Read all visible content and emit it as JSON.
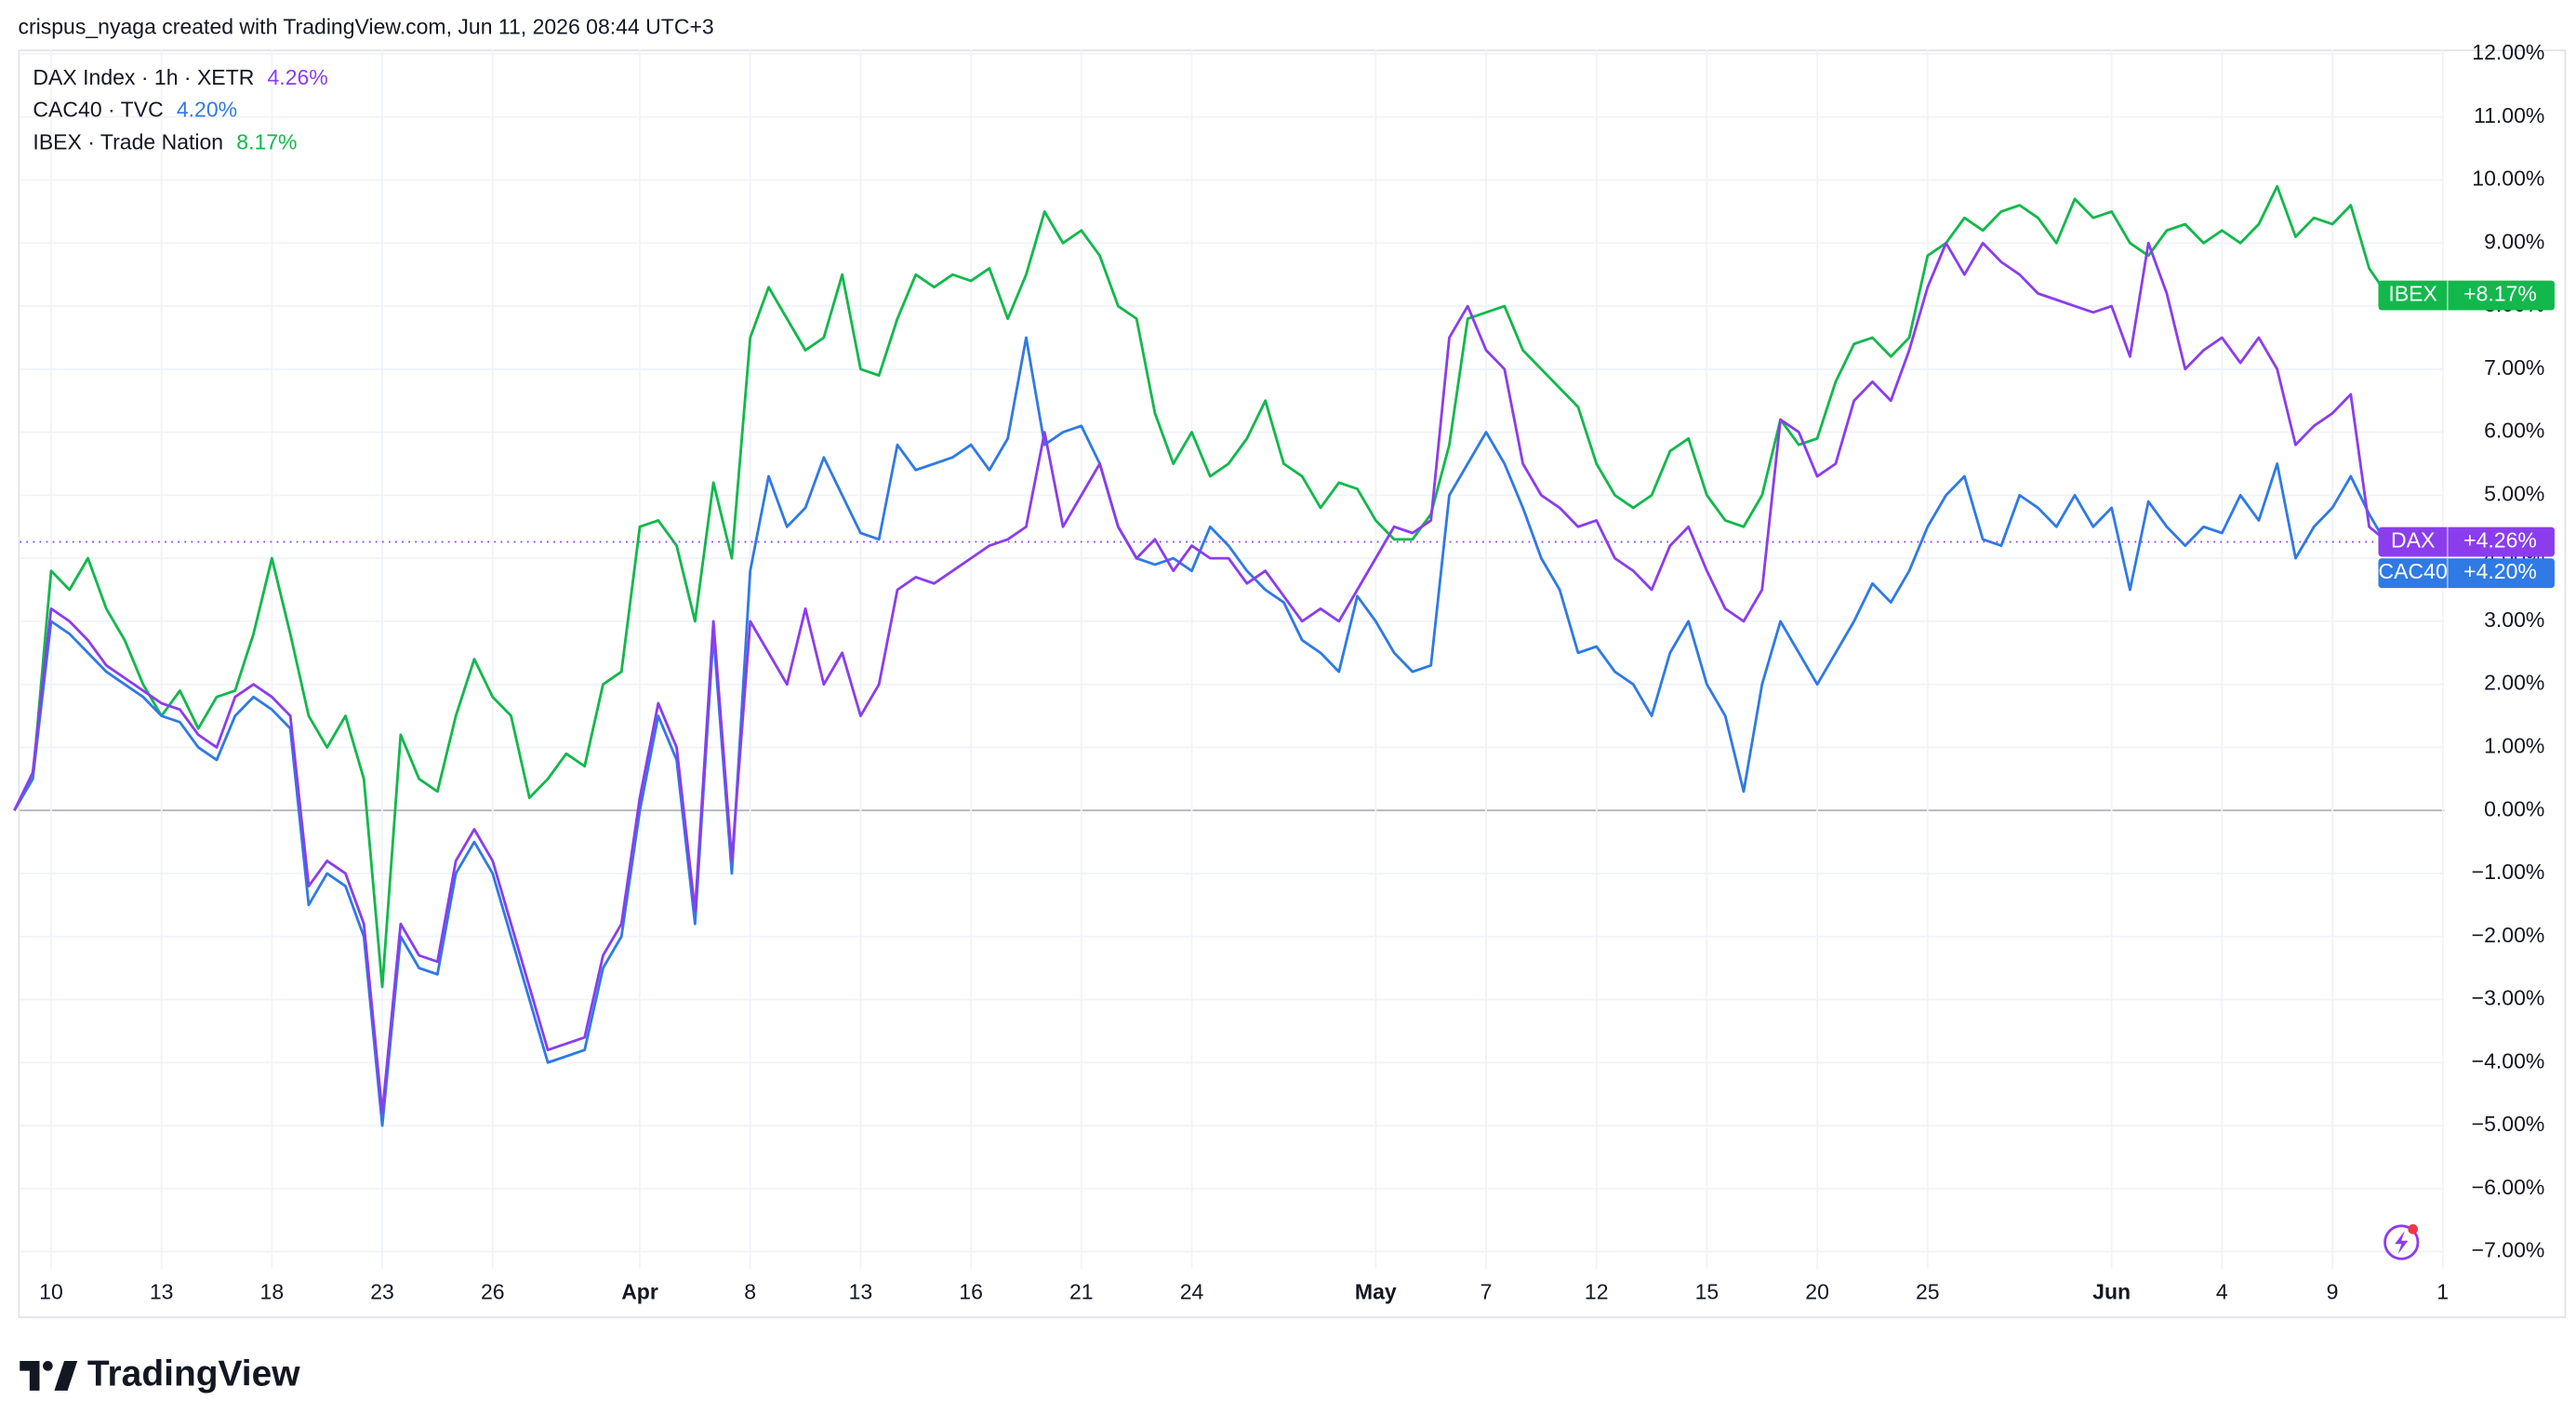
{
  "header": {
    "text": "crispus_nyaga created with TradingView.com, Jun 11, 2026 08:44 UTC+3"
  },
  "chart_data": {
    "type": "line",
    "categories": [
      null,
      null,
      "10",
      null,
      null,
      null,
      null,
      null,
      "13",
      null,
      null,
      null,
      null,
      null,
      "18",
      null,
      null,
      null,
      null,
      null,
      "23",
      null,
      null,
      null,
      null,
      null,
      "26",
      null,
      null,
      null,
      null,
      null,
      null,
      null,
      "Apr",
      null,
      null,
      null,
      null,
      null,
      "8",
      null,
      null,
      null,
      null,
      null,
      "13",
      null,
      null,
      null,
      null,
      null,
      "16",
      null,
      null,
      null,
      null,
      null,
      "21",
      null,
      null,
      null,
      null,
      null,
      "24",
      null,
      null,
      null,
      null,
      null,
      null,
      null,
      null,
      null,
      "May",
      null,
      null,
      null,
      null,
      null,
      "7",
      null,
      null,
      null,
      null,
      null,
      "12",
      null,
      null,
      null,
      null,
      null,
      "15",
      null,
      null,
      null,
      null,
      null,
      "20",
      null,
      null,
      null,
      null,
      null,
      "25",
      null,
      null,
      null,
      null,
      null,
      null,
      null,
      null,
      null,
      "Jun",
      null,
      null,
      null,
      null,
      null,
      "4",
      null,
      null,
      null,
      null,
      null,
      "9",
      null,
      null,
      null,
      null,
      null,
      "1"
    ],
    "series": [
      {
        "name": "DAX Index · 1h · XETR",
        "last_label": "4.26%",
        "tag": "DAX",
        "tag_value": "+4.26%",
        "color": "#8b3ded",
        "values": [
          0,
          0.6,
          3.2,
          3.0,
          2.7,
          2.3,
          2.1,
          1.9,
          1.7,
          1.6,
          1.2,
          1.0,
          1.8,
          2.0,
          1.8,
          1.5,
          -1.2,
          -0.8,
          -1.0,
          -1.8,
          -4.8,
          -1.8,
          -2.3,
          -2.4,
          -0.8,
          -0.3,
          -0.8,
          -1.8,
          -2.8,
          -3.8,
          -3.7,
          -3.6,
          -2.3,
          -1.8,
          0.2,
          1.7,
          1.0,
          -1.6,
          3.0,
          -0.8,
          3.0,
          2.5,
          2.0,
          3.2,
          2.0,
          2.5,
          1.5,
          2.0,
          3.5,
          3.7,
          3.6,
          3.8,
          4.0,
          4.2,
          4.3,
          4.5,
          6.0,
          4.5,
          5.0,
          5.5,
          4.5,
          4.0,
          4.3,
          3.8,
          4.2,
          4.0,
          4.0,
          3.6,
          3.8,
          3.4,
          3.0,
          3.2,
          3.0,
          3.5,
          4.0,
          4.5,
          4.4,
          4.6,
          7.5,
          8.0,
          7.3,
          7.0,
          5.5,
          5.0,
          4.8,
          4.5,
          4.6,
          4.0,
          3.8,
          3.5,
          4.2,
          4.5,
          3.8,
          3.2,
          3.0,
          3.5,
          6.2,
          6.0,
          5.3,
          5.5,
          6.5,
          6.8,
          6.5,
          7.3,
          8.3,
          9.0,
          8.5,
          9.0,
          8.7,
          8.5,
          8.2,
          8.1,
          8.0,
          7.9,
          8.0,
          7.2,
          9.0,
          8.2,
          7.0,
          7.3,
          7.5,
          7.1,
          7.5,
          7.0,
          5.8,
          6.1,
          6.3,
          6.6,
          4.5,
          4.26,
          null,
          null,
          null
        ]
      },
      {
        "name": "CAC40 · TVC",
        "last_label": "4.20%",
        "tag": "CAC40",
        "tag_value": "+4.20%",
        "color": "#2f7ae5",
        "values": [
          0,
          0.5,
          3.0,
          2.8,
          2.5,
          2.2,
          2.0,
          1.8,
          1.5,
          1.4,
          1.0,
          0.8,
          1.5,
          1.8,
          1.6,
          1.3,
          -1.5,
          -1.0,
          -1.2,
          -2.0,
          -5.0,
          -2.0,
          -2.5,
          -2.6,
          -1.0,
          -0.5,
          -1.0,
          -2.0,
          -3.0,
          -4.0,
          -3.9,
          -3.8,
          -2.5,
          -2.0,
          0.0,
          1.5,
          0.8,
          -1.8,
          2.8,
          -1.0,
          3.8,
          5.3,
          4.5,
          4.8,
          5.6,
          5.0,
          4.4,
          4.3,
          5.8,
          5.4,
          5.5,
          5.6,
          5.8,
          5.4,
          5.9,
          7.5,
          5.8,
          6.0,
          6.1,
          5.5,
          4.5,
          4.0,
          3.9,
          4.0,
          3.8,
          4.5,
          4.2,
          3.8,
          3.5,
          3.3,
          2.7,
          2.5,
          2.2,
          3.4,
          3.0,
          2.5,
          2.2,
          2.3,
          5.0,
          5.5,
          6.0,
          5.5,
          4.8,
          4.0,
          3.5,
          2.5,
          2.6,
          2.2,
          2.0,
          1.5,
          2.5,
          3.0,
          2.0,
          1.5,
          0.3,
          2.0,
          3.0,
          2.5,
          2.0,
          2.5,
          3.0,
          3.6,
          3.3,
          3.8,
          4.5,
          5.0,
          5.3,
          4.3,
          4.2,
          5.0,
          4.8,
          4.5,
          5.0,
          4.5,
          4.8,
          3.5,
          4.9,
          4.5,
          4.2,
          4.5,
          4.4,
          5.0,
          4.6,
          5.5,
          4.0,
          4.5,
          4.8,
          5.3,
          4.7,
          4.2,
          null,
          null,
          null
        ]
      },
      {
        "name": "IBEX · Trade Nation",
        "last_label": "8.17%",
        "tag": "IBEX",
        "tag_value": "+8.17%",
        "color": "#12b84c",
        "values": [
          0,
          0.5,
          3.8,
          3.5,
          4.0,
          3.2,
          2.7,
          2.0,
          1.5,
          1.9,
          1.3,
          1.8,
          1.9,
          2.8,
          4.0,
          2.8,
          1.5,
          1.0,
          1.5,
          0.5,
          -2.8,
          1.2,
          0.5,
          0.3,
          1.5,
          2.4,
          1.8,
          1.5,
          0.2,
          0.5,
          0.9,
          0.7,
          2.0,
          2.2,
          4.5,
          4.6,
          4.2,
          3.0,
          5.2,
          4.0,
          7.5,
          8.3,
          7.8,
          7.3,
          7.5,
          8.5,
          7.0,
          6.9,
          7.8,
          8.5,
          8.3,
          8.5,
          8.4,
          8.6,
          7.8,
          8.5,
          9.5,
          9.0,
          9.2,
          8.8,
          8.0,
          7.8,
          6.3,
          5.5,
          6.0,
          5.3,
          5.5,
          5.9,
          6.5,
          5.5,
          5.3,
          4.8,
          5.2,
          5.1,
          4.6,
          4.3,
          4.3,
          4.7,
          5.8,
          7.8,
          7.9,
          8.0,
          7.3,
          7.0,
          6.7,
          6.4,
          5.5,
          5.0,
          4.8,
          5.0,
          5.7,
          5.9,
          5.0,
          4.6,
          4.5,
          5.0,
          6.2,
          5.8,
          5.9,
          6.8,
          7.4,
          7.5,
          7.2,
          7.5,
          8.8,
          9.0,
          9.4,
          9.2,
          9.5,
          9.6,
          9.4,
          9.0,
          9.7,
          9.4,
          9.5,
          9.0,
          8.8,
          9.2,
          9.3,
          9.0,
          9.2,
          9.0,
          9.3,
          9.9,
          9.1,
          9.4,
          9.3,
          9.6,
          8.6,
          8.17,
          null,
          null,
          null
        ]
      }
    ],
    "ylim": [
      -7.27,
      12.07
    ],
    "yticks": [
      {
        "value": 12,
        "label": "12.00%"
      },
      {
        "value": 11,
        "label": "11.00%"
      },
      {
        "value": 10,
        "label": "10.00%"
      },
      {
        "value": 9,
        "label": "9.00%"
      },
      {
        "value": 8,
        "label": "8.00%"
      },
      {
        "value": 7,
        "label": "7.00%"
      },
      {
        "value": 6,
        "label": "6.00%"
      },
      {
        "value": 5,
        "label": "5.00%"
      },
      {
        "value": 4,
        "label": "4.00%"
      },
      {
        "value": 3,
        "label": "3.00%"
      },
      {
        "value": 2,
        "label": "2.00%"
      },
      {
        "value": 1,
        "label": "1.00%"
      },
      {
        "value": 0,
        "label": "0.00%"
      },
      {
        "value": -1,
        "label": "−1.00%"
      },
      {
        "value": -2,
        "label": "−2.00%"
      },
      {
        "value": -3,
        "label": "−3.00%"
      },
      {
        "value": -4,
        "label": "−4.00%"
      },
      {
        "value": -5,
        "label": "−5.00%"
      },
      {
        "value": -6,
        "label": "−6.00%"
      },
      {
        "value": -7,
        "label": "−7.00%"
      }
    ],
    "grid": true
  },
  "footer": {
    "brand": "TradingView"
  }
}
